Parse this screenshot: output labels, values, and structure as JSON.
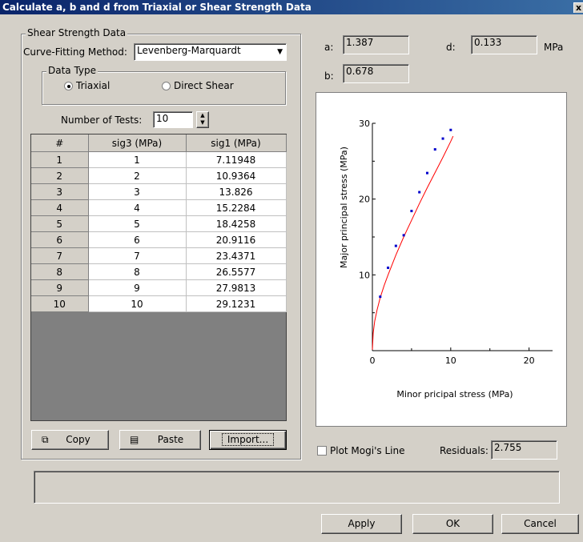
{
  "window": {
    "title": "Calculate a, b and d from Triaxial or Shear Strength Data",
    "close_glyph": "x"
  },
  "shear_group": {
    "title": "Shear Strength Data"
  },
  "curve_fitting": {
    "label": "Curve-Fitting Method:",
    "value": "Levenberg-Marquardt"
  },
  "data_type": {
    "title": "Data Type",
    "options": [
      "Triaxial",
      "Direct Shear"
    ],
    "selected": "Triaxial"
  },
  "tests": {
    "label": "Number of Tests:",
    "value": "10"
  },
  "table": {
    "headers": [
      "#",
      "sig3 (MPa)",
      "sig1 (MPa)"
    ],
    "rows": [
      [
        "1",
        "1",
        "7.11948"
      ],
      [
        "2",
        "2",
        "10.9364"
      ],
      [
        "3",
        "3",
        "13.826"
      ],
      [
        "4",
        "4",
        "15.2284"
      ],
      [
        "5",
        "5",
        "18.4258"
      ],
      [
        "6",
        "6",
        "20.9116"
      ],
      [
        "7",
        "7",
        "23.4371"
      ],
      [
        "8",
        "8",
        "26.5577"
      ],
      [
        "9",
        "9",
        "27.9813"
      ],
      [
        "10",
        "10",
        "29.1231"
      ]
    ]
  },
  "buttons": {
    "copy": "Copy",
    "paste": "Paste",
    "import": "Import...",
    "apply": "Apply",
    "ok": "OK",
    "cancel": "Cancel"
  },
  "params": {
    "a_label": "a:",
    "a_value": "1.387",
    "b_label": "b:",
    "b_value": "0.678",
    "d_label": "d:",
    "d_value": "0.133",
    "unit": "MPa"
  },
  "mogi": {
    "label": "Plot Mogi's Line",
    "checked": false
  },
  "residuals": {
    "label": "Residuals:",
    "value": "2.755"
  },
  "colors": {
    "fit_line": "#ff0000",
    "points": "#0000cc",
    "title_start": "#0a246a",
    "title_end": "#3a6ea5"
  },
  "icons": {
    "copy": "copy-icon",
    "paste": "paste-icon",
    "dropdown": "chevron-down-icon",
    "spinner": "spinner-arrows-icon"
  },
  "chart_data": {
    "type": "scatter",
    "title": "",
    "xlabel": "Minor pricipal stress (MPa)",
    "ylabel": "Major principal stress (MPa)",
    "xlim": [
      0,
      23
    ],
    "ylim": [
      0,
      30
    ],
    "x_ticks": [
      0,
      10,
      20
    ],
    "y_ticks": [
      10,
      20,
      30
    ],
    "grid": false,
    "series": [
      {
        "kind": "points",
        "x": [
          1,
          2,
          3,
          4,
          5,
          6,
          7,
          8,
          9,
          10
        ],
        "y": [
          7.11948,
          10.9364,
          13.826,
          15.2284,
          18.4258,
          20.9116,
          23.4371,
          26.5577,
          27.9813,
          29.1231
        ]
      },
      {
        "kind": "fit_line",
        "x": [
          0,
          0.1,
          0.3,
          0.6,
          1,
          1.5,
          2,
          3,
          4,
          5,
          6,
          7,
          8,
          9,
          10,
          10.3
        ],
        "y": [
          0.13,
          2.3,
          3.9,
          5.4,
          7.0,
          8.6,
          10.0,
          12.6,
          15.0,
          17.2,
          19.4,
          21.5,
          23.5,
          25.5,
          27.6,
          28.3
        ]
      }
    ]
  }
}
